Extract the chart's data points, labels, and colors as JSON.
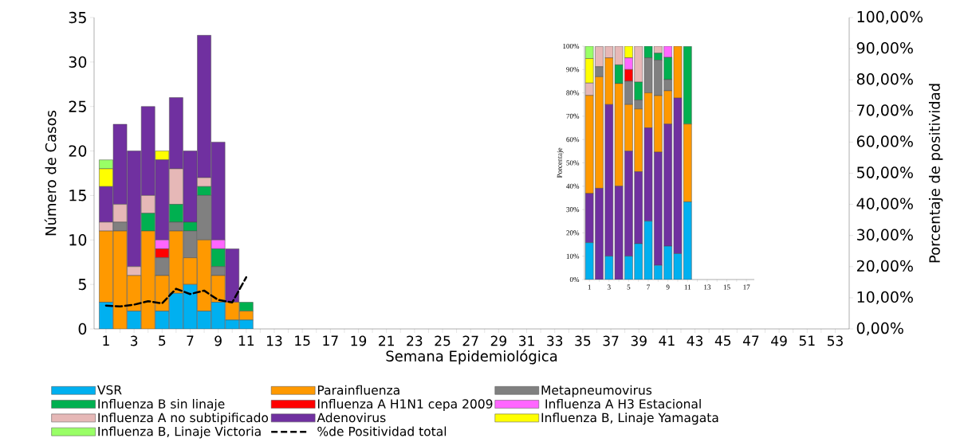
{
  "chart_data": [
    {
      "type": "bar",
      "stacked": true,
      "xlabel": "Semana Epidemiológica",
      "ylabel": "Número de Casos",
      "y2label": "Porcentaje  de positividad",
      "legend": "bottom",
      "categories": [
        "1",
        null,
        "3",
        null,
        "5",
        null,
        "7",
        null,
        "9",
        null,
        "11",
        null,
        "13",
        null,
        "15",
        null,
        "17",
        null,
        "19",
        null,
        "21",
        null,
        "23",
        null,
        "25",
        null,
        "27",
        null,
        "29",
        null,
        "31",
        null,
        "33",
        null,
        "35",
        null,
        "37",
        null,
        "39",
        null,
        "41",
        null,
        "43",
        null,
        "45",
        null,
        "47",
        null,
        "49",
        null,
        "51",
        null,
        "53"
      ],
      "ylim": [
        0,
        35
      ],
      "yticks": [
        0,
        5,
        10,
        15,
        20,
        25,
        30,
        35
      ],
      "y2lim": [
        0,
        100
      ],
      "y2ticks": [
        {
          "value": 0,
          "label": "0,00%"
        },
        {
          "value": 10,
          "label": "10,00%"
        },
        {
          "value": 20,
          "label": "20,00%"
        },
        {
          "value": 30,
          "label": "30,00%"
        },
        {
          "value": 40,
          "label": "40,00%"
        },
        {
          "value": 50,
          "label": "50,00%"
        },
        {
          "value": 60,
          "label": "60,00%"
        },
        {
          "value": 70,
          "label": "70,00%"
        },
        {
          "value": 80,
          "label": "80,00%"
        },
        {
          "value": 90,
          "label": "90,00%"
        },
        {
          "value": 100,
          "label": "100,00%"
        }
      ],
      "series": [
        {
          "name": "VSR",
          "color": "#00b0f0",
          "values": [
            3,
            0,
            2,
            0,
            2,
            4,
            5,
            2,
            3,
            1,
            1,
            0,
            0,
            0,
            0,
            0,
            0,
            0,
            0,
            0,
            0,
            0,
            0,
            0,
            0,
            0,
            0,
            0,
            0,
            0,
            0,
            0,
            0,
            0,
            0,
            0,
            0,
            0,
            0,
            0,
            0,
            0,
            0,
            0,
            0,
            0,
            0,
            0,
            0,
            0,
            0,
            0,
            0
          ]
        },
        {
          "name": "Parainfluenza",
          "color": "#ff9900",
          "values": [
            8,
            11,
            4,
            11,
            4,
            7,
            3,
            8,
            3,
            2,
            1,
            0,
            0,
            0,
            0,
            0,
            0,
            0,
            0,
            0,
            0,
            0,
            0,
            0,
            0,
            0,
            0,
            0,
            0,
            0,
            0,
            0,
            0,
            0,
            0,
            0,
            0,
            0,
            0,
            0,
            0,
            0,
            0,
            0,
            0,
            0,
            0,
            0,
            0,
            0,
            0,
            0,
            0
          ]
        },
        {
          "name": "Metapneumovirus",
          "color": "#808080",
          "values": [
            0,
            1,
            0,
            0,
            2,
            1,
            3,
            5,
            1,
            0,
            0,
            0,
            0,
            0,
            0,
            0,
            0,
            0,
            0,
            0,
            0,
            0,
            0,
            0,
            0,
            0,
            0,
            0,
            0,
            0,
            0,
            0,
            0,
            0,
            0,
            0,
            0,
            0,
            0,
            0,
            0,
            0,
            0,
            0,
            0,
            0,
            0,
            0,
            0,
            0,
            0,
            0,
            0
          ]
        },
        {
          "name": "Influenza B sin linaje",
          "color": "#00b050",
          "values": [
            0,
            0,
            0,
            2,
            0,
            2,
            1,
            1,
            2,
            0,
            1,
            0,
            0,
            0,
            0,
            0,
            0,
            0,
            0,
            0,
            0,
            0,
            0,
            0,
            0,
            0,
            0,
            0,
            0,
            0,
            0,
            0,
            0,
            0,
            0,
            0,
            0,
            0,
            0,
            0,
            0,
            0,
            0,
            0,
            0,
            0,
            0,
            0,
            0,
            0,
            0,
            0,
            0
          ]
        },
        {
          "name": "Influenza A H1N1 cepa 2009",
          "color": "#ff0000",
          "values": [
            0,
            0,
            0,
            0,
            1,
            0,
            0,
            0,
            0,
            0,
            0,
            0,
            0,
            0,
            0,
            0,
            0,
            0,
            0,
            0,
            0,
            0,
            0,
            0,
            0,
            0,
            0,
            0,
            0,
            0,
            0,
            0,
            0,
            0,
            0,
            0,
            0,
            0,
            0,
            0,
            0,
            0,
            0,
            0,
            0,
            0,
            0,
            0,
            0,
            0,
            0,
            0,
            0
          ]
        },
        {
          "name": " Influenza A H3 Estacional",
          "color": "#ff66ff",
          "values": [
            0,
            0,
            0,
            0,
            1,
            0,
            0,
            0,
            1,
            0,
            0,
            0,
            0,
            0,
            0,
            0,
            0,
            0,
            0,
            0,
            0,
            0,
            0,
            0,
            0,
            0,
            0,
            0,
            0,
            0,
            0,
            0,
            0,
            0,
            0,
            0,
            0,
            0,
            0,
            0,
            0,
            0,
            0,
            0,
            0,
            0,
            0,
            0,
            0,
            0,
            0,
            0,
            0
          ]
        },
        {
          "name": "Influenza A no subtipificado",
          "color": "#e6b8b7",
          "values": [
            1,
            2,
            1,
            2,
            0,
            4,
            0,
            1,
            0,
            0,
            0,
            0,
            0,
            0,
            0,
            0,
            0,
            0,
            0,
            0,
            0,
            0,
            0,
            0,
            0,
            0,
            0,
            0,
            0,
            0,
            0,
            0,
            0,
            0,
            0,
            0,
            0,
            0,
            0,
            0,
            0,
            0,
            0,
            0,
            0,
            0,
            0,
            0,
            0,
            0,
            0,
            0,
            0
          ]
        },
        {
          "name": "Adenovirus",
          "color": "#7030a0",
          "values": [
            4,
            9,
            13,
            10,
            9,
            8,
            8,
            16,
            11,
            6,
            0,
            0,
            0,
            0,
            0,
            0,
            0,
            0,
            0,
            0,
            0,
            0,
            0,
            0,
            0,
            0,
            0,
            0,
            0,
            0,
            0,
            0,
            0,
            0,
            0,
            0,
            0,
            0,
            0,
            0,
            0,
            0,
            0,
            0,
            0,
            0,
            0,
            0,
            0,
            0,
            0,
            0,
            0
          ]
        },
        {
          "name": "Influenza B, Linaje Yamagata",
          "color": "#ffff00",
          "values": [
            2,
            0,
            0,
            0,
            1,
            0,
            0,
            0,
            0,
            0,
            0,
            0,
            0,
            0,
            0,
            0,
            0,
            0,
            0,
            0,
            0,
            0,
            0,
            0,
            0,
            0,
            0,
            0,
            0,
            0,
            0,
            0,
            0,
            0,
            0,
            0,
            0,
            0,
            0,
            0,
            0,
            0,
            0,
            0,
            0,
            0,
            0,
            0,
            0,
            0,
            0,
            0,
            0
          ]
        },
        {
          "name": "Influenza B, Linaje Victoria",
          "color": "#99ff66",
          "values": [
            1,
            0,
            0,
            0,
            0,
            0,
            0,
            0,
            0,
            0,
            0,
            0,
            0,
            0,
            0,
            0,
            0,
            0,
            0,
            0,
            0,
            0,
            0,
            0,
            0,
            0,
            0,
            0,
            0,
            0,
            0,
            0,
            0,
            0,
            0,
            0,
            0,
            0,
            0,
            0,
            0,
            0,
            0,
            0,
            0,
            0,
            0,
            0,
            0,
            0,
            0,
            0,
            0
          ]
        },
        {
          "name": "%de Positividad total",
          "type": "line",
          "axis": "y2",
          "color": "#000000",
          "line_style": "dashed",
          "marker": "none",
          "values": [
            7.5,
            7.2,
            7.8,
            8.9,
            8.2,
            12.9,
            11.2,
            12.3,
            9.3,
            8.5,
            16.6,
            null,
            null,
            null,
            null,
            null,
            null,
            null,
            null,
            null,
            null,
            null,
            null,
            null,
            null,
            null,
            null,
            null,
            null,
            null,
            null,
            null,
            null,
            null,
            null,
            null,
            null,
            null,
            null,
            null,
            null,
            null,
            null,
            null,
            null,
            null,
            null,
            null,
            null,
            null,
            null,
            null,
            null
          ]
        }
      ]
    },
    {
      "type": "bar",
      "stacked": true,
      "ylabel": "Porcentaje",
      "categories": [
        "1",
        null,
        "3",
        null,
        "5",
        null,
        "7",
        null,
        "9",
        null,
        "11",
        null,
        "13",
        null,
        "15",
        null,
        "17"
      ],
      "ylim": [
        0,
        100
      ],
      "yticks": [
        {
          "value": 0,
          "label": "0%"
        },
        {
          "value": 10,
          "label": "10%"
        },
        {
          "value": 20,
          "label": "20%"
        },
        {
          "value": 30,
          "label": "30%"
        },
        {
          "value": 40,
          "label": "40%"
        },
        {
          "value": 50,
          "label": "50%"
        },
        {
          "value": 60,
          "label": "60%"
        },
        {
          "value": 70,
          "label": "70%"
        },
        {
          "value": 80,
          "label": "80%"
        },
        {
          "value": 90,
          "label": "90%"
        },
        {
          "value": 100,
          "label": "100%"
        }
      ],
      "series": [
        {
          "color": "#00b0f0",
          "values": [
            15.8,
            0,
            10,
            0,
            10,
            15.4,
            25,
            6.1,
            14.3,
            11.1,
            33.3,
            0,
            0,
            0,
            0,
            0,
            0
          ]
        },
        {
          "color": "#7030a0",
          "values": [
            21.1,
            39.1,
            65,
            40,
            45,
            30.8,
            40,
            48.5,
            52.3,
            66.7,
            0,
            0,
            0,
            0,
            0,
            0,
            0
          ]
        },
        {
          "color": "#ff9900",
          "values": [
            42.0,
            47.8,
            20,
            44,
            20,
            26.9,
            15,
            24.2,
            14.3,
            22.2,
            33.3,
            0,
            0,
            0,
            0,
            0,
            0
          ]
        },
        {
          "color": "#808080",
          "values": [
            0,
            4.3,
            0,
            0,
            10,
            3.8,
            15,
            15.2,
            4.8,
            0,
            0,
            0,
            0,
            0,
            0,
            0,
            0
          ]
        },
        {
          "color": "#00b050",
          "values": [
            0,
            0,
            0,
            8,
            0,
            7.7,
            5,
            3,
            9.5,
            0,
            33.3,
            0,
            0,
            0,
            0,
            0,
            0
          ]
        },
        {
          "color": "#ff0000",
          "values": [
            0,
            0,
            0,
            0,
            5,
            0,
            0,
            0,
            0,
            0,
            0,
            0,
            0,
            0,
            0,
            0,
            0
          ]
        },
        {
          "color": "#ff66ff",
          "values": [
            0,
            0,
            0,
            0,
            5,
            0,
            0,
            0,
            4.8,
            0,
            0,
            0,
            0,
            0,
            0,
            0,
            0
          ]
        },
        {
          "color": "#e6b8b7",
          "values": [
            5.3,
            8.7,
            5,
            8,
            0,
            15.4,
            0,
            3,
            0,
            0,
            0,
            0,
            0,
            0,
            0,
            0,
            0
          ]
        },
        {
          "color": "#ffff00",
          "values": [
            10.5,
            0,
            0,
            0,
            5,
            0,
            0,
            0,
            0,
            0,
            0,
            0,
            0,
            0,
            0,
            0,
            0
          ]
        },
        {
          "color": "#99ff66",
          "values": [
            5.3,
            0,
            0,
            0,
            0,
            0,
            0,
            0,
            0,
            0,
            0,
            0,
            0,
            0,
            0,
            0,
            0
          ]
        }
      ]
    }
  ]
}
